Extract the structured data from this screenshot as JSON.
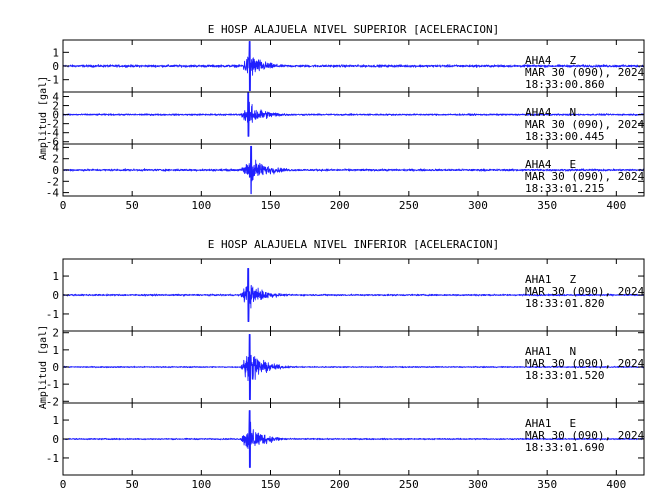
{
  "colors": {
    "trace": "#1f1fff",
    "axis": "#000000",
    "background": "#ffffff"
  },
  "chart_data": [
    {
      "type": "line",
      "title": "E HOSP ALAJUELA NIVEL SUPERIOR [ACELERACION]",
      "ylabel": "Amplitud [gal]",
      "xlim": [
        0,
        420
      ],
      "xticks": [
        0,
        50,
        100,
        150,
        200,
        250,
        300,
        350,
        400
      ],
      "grid": false,
      "panels": [
        {
          "station": "AHA4",
          "component": "Z",
          "date": "MAR 30 (090), 2024",
          "time": "18:33:00.860",
          "ylim": [
            -1.9,
            1.9
          ],
          "yticks": [
            -1,
            0,
            1
          ],
          "event": {
            "onset_s": 128,
            "peak_s": 135,
            "peak_amplitude": 1.8,
            "noise_amplitude": 0.12,
            "decay_s": 10
          }
        },
        {
          "station": "AHA4",
          "component": "N",
          "date": "MAR 30 (090), 2024",
          "time": "18:33:00.445",
          "ylim": [
            -6.5,
            5
          ],
          "yticks": [
            -6,
            -4,
            -2,
            0,
            2,
            4
          ],
          "event": {
            "onset_s": 128,
            "peak_s": 134,
            "peak_amplitude": 4.8,
            "noise_amplitude": 0.25,
            "decay_s": 12
          }
        },
        {
          "station": "AHA4",
          "component": "E",
          "date": "MAR 30 (090), 2024",
          "time": "18:33:01.215",
          "ylim": [
            -4.6,
            4.6
          ],
          "yticks": [
            -4,
            -2,
            0,
            2,
            4
          ],
          "event": {
            "onset_s": 128,
            "peak_s": 136,
            "peak_amplitude": 4.2,
            "noise_amplitude": 0.25,
            "decay_s": 12
          }
        }
      ]
    },
    {
      "type": "line",
      "title": "E HOSP ALAJUELA NIVEL INFERIOR [ACELERACION]",
      "ylabel": "Amplitud [gal]",
      "xlim": [
        0,
        420
      ],
      "xticks": [
        0,
        50,
        100,
        150,
        200,
        250,
        300,
        350,
        400
      ],
      "grid": false,
      "panels": [
        {
          "station": "AHA1",
          "component": "Z",
          "date": "MAR 30 (090), 2024",
          "time": "18:33:01.820",
          "ylim": [
            -1.9,
            1.9
          ],
          "yticks": [
            -1,
            0,
            1
          ],
          "event": {
            "onset_s": 128,
            "peak_s": 134,
            "peak_amplitude": 1.4,
            "noise_amplitude": 0.06,
            "decay_s": 10
          }
        },
        {
          "station": "AHA1",
          "component": "N",
          "date": "MAR 30 (090), 2024",
          "time": "18:33:01.520",
          "ylim": [
            -2.1,
            2.1
          ],
          "yticks": [
            -2,
            -1,
            0,
            1,
            2
          ],
          "event": {
            "onset_s": 128,
            "peak_s": 135,
            "peak_amplitude": 1.9,
            "noise_amplitude": 0.05,
            "decay_s": 10
          }
        },
        {
          "station": "AHA1",
          "component": "E",
          "date": "MAR 30 (090), 2024",
          "time": "18:33:01.690",
          "ylim": [
            -1.9,
            1.9
          ],
          "yticks": [
            -1,
            0,
            1
          ],
          "event": {
            "onset_s": 128,
            "peak_s": 135,
            "peak_amplitude": 1.5,
            "noise_amplitude": 0.05,
            "decay_s": 10
          }
        }
      ]
    }
  ]
}
